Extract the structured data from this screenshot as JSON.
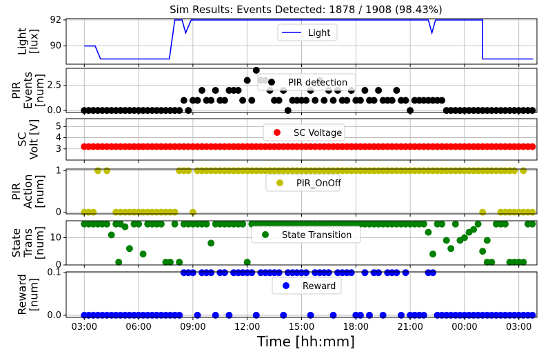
{
  "chart_data": {
    "type": "line",
    "title": "Sim Results: Events Detected: 1878 / 1908 (98.43%)",
    "xlabel": "Time [hh:mm]",
    "x_ticks": [
      "03:00",
      "06:00",
      "09:00",
      "12:00",
      "15:00",
      "18:00",
      "21:00",
      "00:00",
      "03:00"
    ],
    "x_range_hours": [
      2,
      28
    ],
    "grid": true,
    "panels": [
      {
        "id": "light",
        "ylabel": [
          "Light",
          "[lux]"
        ],
        "ylim": [
          88.6,
          92.1
        ],
        "yticks": [
          {
            "v": 90,
            "label": "90"
          },
          {
            "v": 92,
            "label": "92"
          }
        ],
        "legend": {
          "label": "Light",
          "marker": "line",
          "color": "#0000ff"
        },
        "series": {
          "type": "line",
          "color": "#0000ff",
          "points": [
            [
              3.0,
              90.0
            ],
            [
              3.6,
              90.0
            ],
            [
              3.9,
              89.0
            ],
            [
              7.7,
              89.0
            ],
            [
              8.0,
              92.0
            ],
            [
              8.4,
              92.0
            ],
            [
              8.6,
              91.0
            ],
            [
              8.9,
              92.0
            ],
            [
              22.0,
              92.0
            ],
            [
              22.2,
              91.0
            ],
            [
              22.4,
              92.0
            ],
            [
              25.0,
              92.0
            ],
            [
              25.0,
              89.0
            ],
            [
              27.8,
              89.0
            ]
          ]
        }
      },
      {
        "id": "pir",
        "ylabel": [
          "PIR",
          "Events",
          "[num]"
        ],
        "ylim": [
          -0.2,
          4.2
        ],
        "yticks": [
          {
            "v": 0,
            "label": "0.0"
          },
          {
            "v": 2.5,
            "label": "2.5"
          }
        ],
        "legend": {
          "label": "PIR detection",
          "marker": "dot",
          "color": "#000000"
        },
        "series": {
          "type": "scatter",
          "color": "#000000",
          "base": 0,
          "step": 0.25,
          "from": 3.0,
          "to": 27.75,
          "events": [
            [
              8.5,
              1
            ],
            [
              9.0,
              1
            ],
            [
              9.25,
              1
            ],
            [
              9.5,
              2
            ],
            [
              9.75,
              1
            ],
            [
              10.0,
              1
            ],
            [
              10.25,
              2
            ],
            [
              10.5,
              1
            ],
            [
              10.75,
              1
            ],
            [
              11.0,
              2
            ],
            [
              11.25,
              2
            ],
            [
              11.5,
              2
            ],
            [
              11.75,
              1
            ],
            [
              12.0,
              3
            ],
            [
              12.25,
              1
            ],
            [
              12.5,
              4
            ],
            [
              12.75,
              3
            ],
            [
              13.0,
              3
            ],
            [
              13.25,
              2
            ],
            [
              13.5,
              1
            ],
            [
              13.75,
              1
            ],
            [
              14.0,
              2
            ],
            [
              14.5,
              1
            ],
            [
              14.75,
              1
            ],
            [
              15.0,
              1
            ],
            [
              15.25,
              1
            ],
            [
              15.5,
              2
            ],
            [
              15.75,
              1
            ],
            [
              16.0,
              3
            ],
            [
              16.25,
              1
            ],
            [
              16.5,
              2
            ],
            [
              16.75,
              1
            ],
            [
              17.0,
              2
            ],
            [
              17.25,
              1
            ],
            [
              17.5,
              1
            ],
            [
              17.75,
              2
            ],
            [
              18.0,
              1
            ],
            [
              18.25,
              1
            ],
            [
              18.5,
              2
            ],
            [
              18.75,
              1
            ],
            [
              19.0,
              1
            ],
            [
              19.25,
              2
            ],
            [
              19.5,
              1
            ],
            [
              19.75,
              1
            ],
            [
              20.0,
              1
            ],
            [
              20.25,
              2
            ],
            [
              20.5,
              1
            ],
            [
              20.75,
              1
            ],
            [
              21.25,
              1
            ],
            [
              21.5,
              1
            ],
            [
              21.75,
              1
            ],
            [
              22.0,
              1
            ],
            [
              22.25,
              1
            ],
            [
              22.5,
              1
            ],
            [
              22.75,
              1
            ]
          ]
        }
      },
      {
        "id": "sc",
        "ylabel": [
          "SC",
          "Volt [V]"
        ],
        "ylim": [
          2.0,
          5.7
        ],
        "yticks": [
          {
            "v": 3,
            "label": "3"
          },
          {
            "v": 4,
            "label": "4"
          },
          {
            "v": 5,
            "label": "5"
          }
        ],
        "legend": {
          "label": "SC Voltage",
          "marker": "dot",
          "color": "#ff0000"
        },
        "series": {
          "type": "scatter",
          "color": "#ff0000",
          "base": 3.2,
          "step": 0.25,
          "from": 3.0,
          "to": 27.75,
          "events": []
        }
      },
      {
        "id": "pir_action",
        "ylabel": [
          "PIR",
          "Action",
          "[num]"
        ],
        "ylim": [
          -0.04,
          1.04
        ],
        "yticks": [
          {
            "v": 0,
            "label": "0"
          },
          {
            "v": 1,
            "label": "1"
          }
        ],
        "legend": {
          "label": "PIR_OnOff",
          "marker": "dot",
          "color": "#bfbf00"
        },
        "series": {
          "type": "scatter",
          "color": "#bfbf00",
          "base": 0,
          "step": 0.25,
          "from": 3.0,
          "to": 27.75,
          "ones_ranges": [
            [
              3.75,
              3.75
            ],
            [
              4.25,
              4.25
            ],
            [
              8.25,
              8.75
            ],
            [
              9.25,
              26.75
            ],
            [
              27.25,
              27.25
            ]
          ],
          "zeros_ranges": [
            [
              3.0,
              3.5
            ],
            [
              4.75,
              8.0
            ],
            [
              9.0,
              9.0
            ],
            [
              25.0,
              25.0
            ],
            [
              26.0,
              27.75
            ]
          ]
        }
      },
      {
        "id": "state",
        "ylabel": [
          "State",
          "Trans",
          "[num]"
        ],
        "ylim": [
          0,
          16.2
        ],
        "yticks": [
          {
            "v": 0,
            "label": "0"
          },
          {
            "v": 10,
            "label": "10"
          }
        ],
        "legend": {
          "label": "State Transition",
          "marker": "dot",
          "color": "#008000"
        },
        "series": {
          "type": "scatter",
          "color": "#008000",
          "base": 15,
          "step": 0.25,
          "from": 3.0,
          "to": 27.75,
          "events": [
            [
              4.5,
              11
            ],
            [
              4.75,
              15
            ],
            [
              4.9,
              1
            ],
            [
              5.25,
              14
            ],
            [
              5.5,
              6
            ],
            [
              6.25,
              4
            ],
            [
              7.5,
              1
            ],
            [
              7.75,
              1
            ],
            [
              8.25,
              1
            ],
            [
              10.0,
              8
            ],
            [
              12.0,
              1
            ],
            [
              22.0,
              12
            ],
            [
              22.25,
              4
            ],
            [
              22.5,
              15
            ],
            [
              22.75,
              15
            ],
            [
              23.0,
              9
            ],
            [
              23.25,
              6
            ],
            [
              23.5,
              15
            ],
            [
              23.75,
              9
            ],
            [
              24.0,
              10
            ],
            [
              24.25,
              12
            ],
            [
              24.5,
              13
            ],
            [
              24.75,
              15
            ],
            [
              25.0,
              5
            ],
            [
              25.25,
              9
            ],
            [
              25.25,
              1
            ],
            [
              25.5,
              1
            ],
            [
              26.5,
              1
            ],
            [
              26.75,
              1
            ],
            [
              27.0,
              1
            ],
            [
              27.25,
              1
            ]
          ]
        }
      },
      {
        "id": "reward",
        "ylabel": [
          "Reward",
          "[num]"
        ],
        "ylim": [
          -0.005,
          0.102
        ],
        "yticks": [
          {
            "v": 0,
            "label": "0.0"
          },
          {
            "v": 0.1,
            "label": "0.1"
          }
        ],
        "legend": {
          "label": "Reward",
          "marker": "dot",
          "color": "#0000ff"
        },
        "series": {
          "type": "scatter",
          "color": "#0000ff",
          "base": 0,
          "step": 0.25,
          "from": 3.0,
          "to": 27.75,
          "ones": [
            8.5,
            8.75,
            9.0,
            9.5,
            9.75,
            10.0,
            10.5,
            10.75,
            11.25,
            11.5,
            11.75,
            12.0,
            12.25,
            12.75,
            13.0,
            13.25,
            13.5,
            13.75,
            14.25,
            14.5,
            14.75,
            15.0,
            15.25,
            15.75,
            16.0,
            16.25,
            16.5,
            17.0,
            17.25,
            17.5,
            17.75,
            18.5,
            19.0,
            19.25,
            19.75,
            20.0,
            20.25,
            20.75,
            22.0,
            22.25
          ],
          "one_value": 0.1
        }
      }
    ]
  }
}
